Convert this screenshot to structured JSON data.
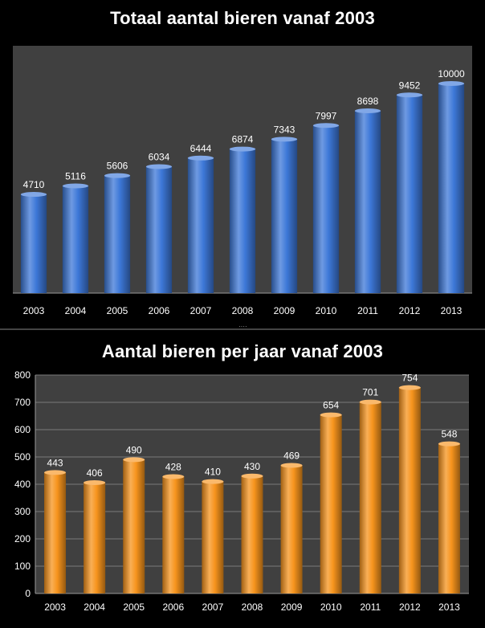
{
  "chart_data": [
    {
      "type": "bar",
      "title": "Totaal aantal bieren vanaf 2003",
      "categories": [
        "2003",
        "2004",
        "2005",
        "2006",
        "2007",
        "2008",
        "2009",
        "2010",
        "2011",
        "2012",
        "2013"
      ],
      "values": [
        4710,
        5116,
        5606,
        6034,
        6444,
        6874,
        7343,
        7997,
        8698,
        9452,
        10000
      ],
      "data_labels": [
        "4710",
        "5116",
        "5606",
        "6034",
        "6444",
        "6874",
        "7343",
        "7997",
        "8698",
        "9452",
        "10000"
      ],
      "ylim": [
        0,
        11800
      ],
      "y_axis_visible": false,
      "grid": false,
      "bar_color": "#3d78d8",
      "plot_background": "#404040"
    },
    {
      "type": "bar",
      "title": "Aantal bieren per jaar vanaf 2003",
      "categories": [
        "2003",
        "2004",
        "2005",
        "2006",
        "2007",
        "2008",
        "2009",
        "2010",
        "2011",
        "2012",
        "2013"
      ],
      "values": [
        443,
        406,
        490,
        428,
        410,
        430,
        469,
        654,
        701,
        754,
        548
      ],
      "data_labels": [
        "443",
        "406",
        "490",
        "428",
        "410",
        "430",
        "469",
        "654",
        "701",
        "754",
        "548"
      ],
      "ylim": [
        0,
        800
      ],
      "yticks": [
        "0",
        "100",
        "200",
        "300",
        "400",
        "500",
        "600",
        "700",
        "800"
      ],
      "grid": true,
      "bar_color": "#f7941d",
      "plot_background": "#404040"
    }
  ]
}
